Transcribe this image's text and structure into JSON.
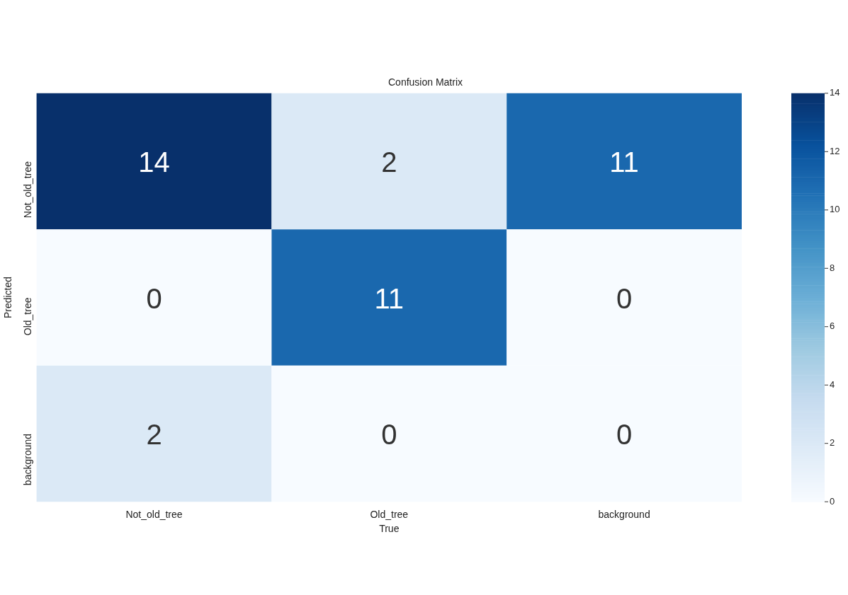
{
  "chart_data": {
    "type": "heatmap",
    "title": "Confusion Matrix",
    "xlabel": "True",
    "ylabel": "Predicted",
    "categories": [
      "Not_old_tree",
      "Old_tree",
      "background"
    ],
    "y_categories": [
      "Not_old_tree",
      "Old_tree",
      "background"
    ],
    "cells": [
      [
        14,
        2,
        11
      ],
      [
        0,
        11,
        0
      ],
      [
        2,
        0,
        0
      ]
    ],
    "clim": [
      0,
      14
    ],
    "cticks": [
      0,
      2,
      4,
      6,
      8,
      10,
      12,
      14
    ],
    "data_labels": true
  }
}
